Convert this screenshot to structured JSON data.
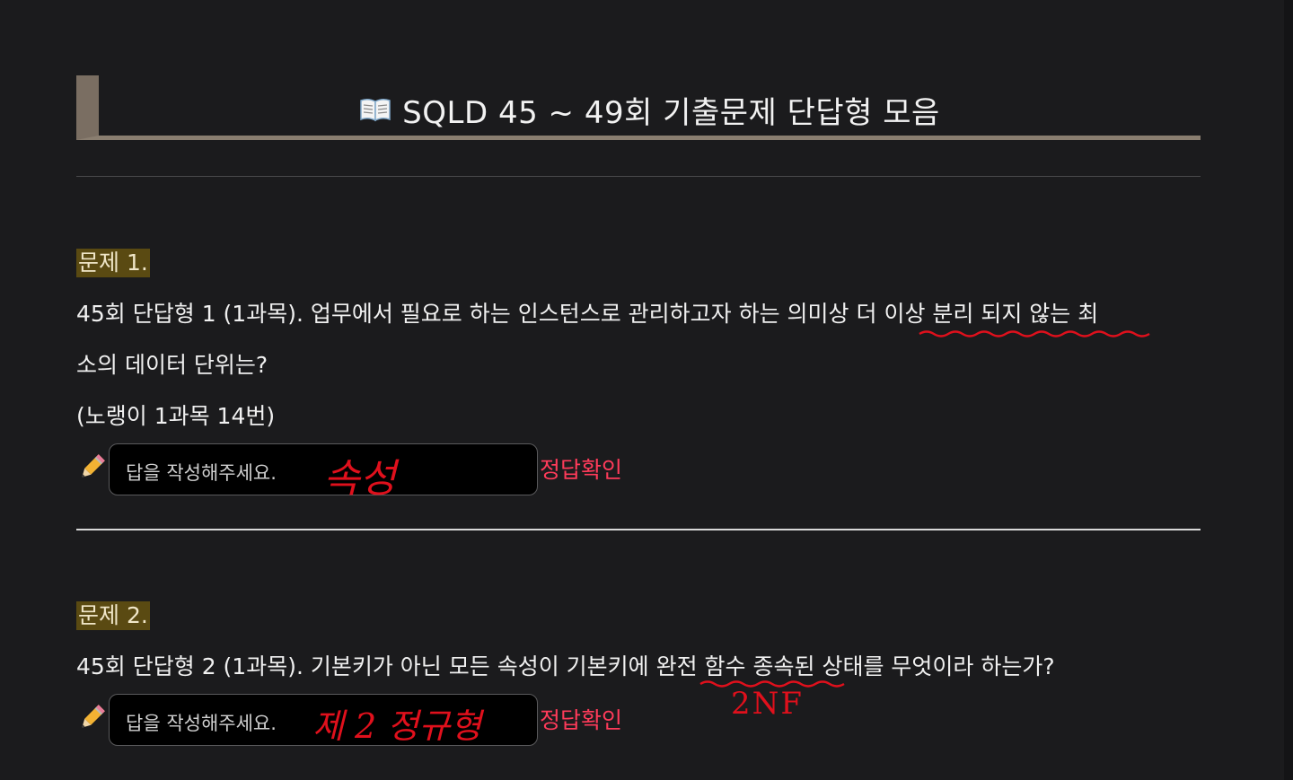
{
  "header": {
    "title": "SQLD 45 ~ 49회 기출문제 단답형 모음"
  },
  "questions": [
    {
      "label": "문제 1.",
      "text_line1": "45회 단답형 1 (1과목). 업무에서 필요로 하는 인스턴스로 관리하고자 하는 의미상 더 이상 분리 되지 않는 최",
      "text_line2": "소의 데이터 단위는?",
      "text_line3": "(노랭이 1과목 14번)",
      "answer_placeholder": "답을 작성해주세요.",
      "handwritten_answer": "속성",
      "check_label": "정답확인"
    },
    {
      "label": "문제 2.",
      "text_line1": "45회 단답형 2 (1과목). 기본키가 아닌 모든 속성이 기본키에 완전 함수 종속된 상태를 무엇이라 하는가?",
      "answer_placeholder": "답을 작성해주세요.",
      "handwritten_answer": "제 2 정규형",
      "handwritten_note": "2NF",
      "check_label": "정답확인"
    }
  ],
  "colors": {
    "background": "#1b1b1d",
    "title_bar": "#7a6e62",
    "label_highlight": "#5a4a12",
    "link": "#ff3b5a",
    "annotation": "#e0101c"
  },
  "icons": [
    "book-icon",
    "pencil-icon"
  ]
}
